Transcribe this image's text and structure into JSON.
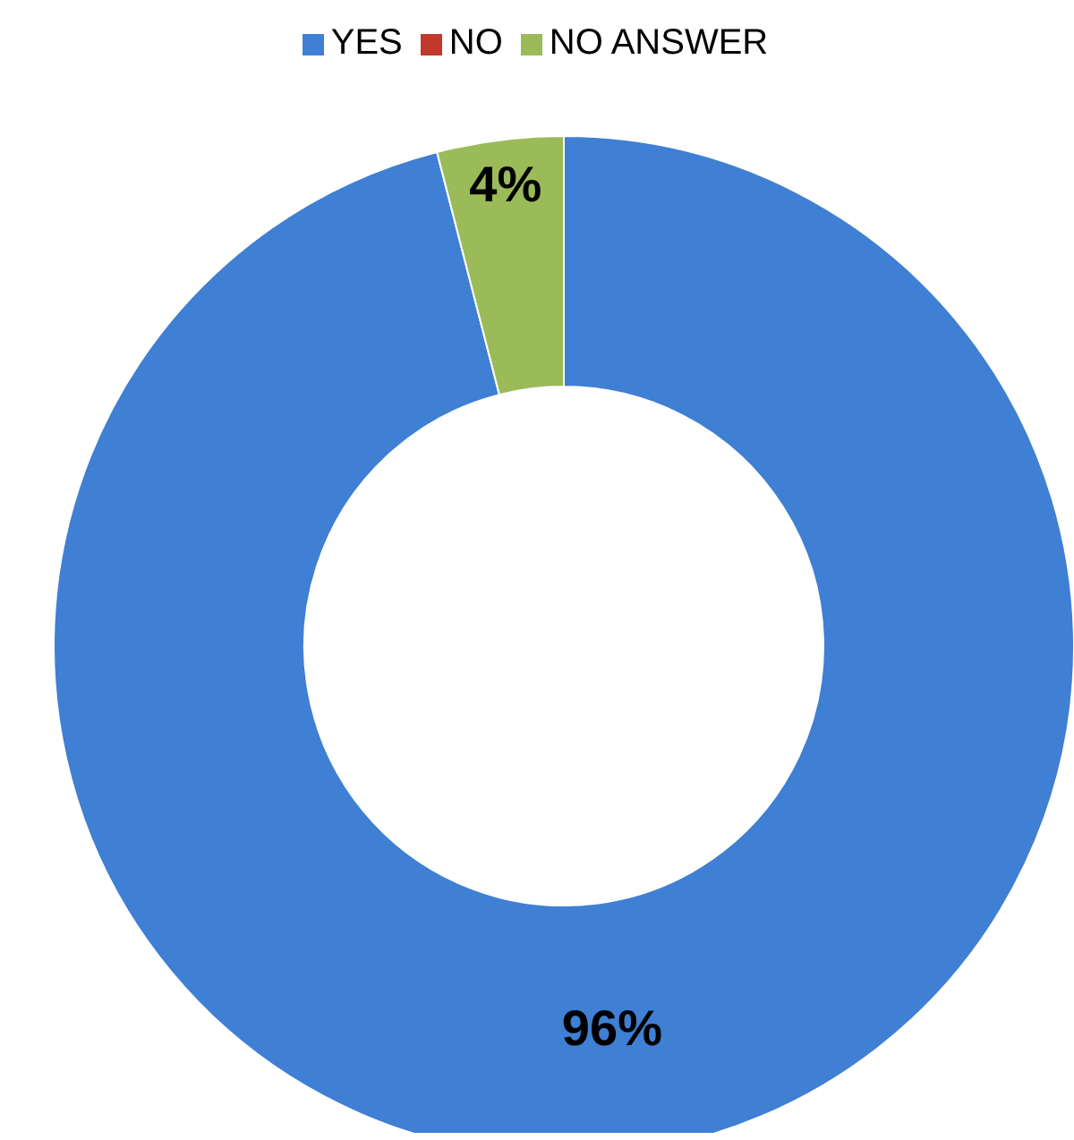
{
  "chart_data": {
    "type": "donut",
    "categories": [
      "YES",
      "NO",
      "NO ANSWER"
    ],
    "values": [
      96,
      0,
      4
    ],
    "colors": [
      "#3f7fd4",
      "#c0392b",
      "#9bbb59"
    ],
    "value_labels": [
      "96%",
      null,
      "4%"
    ],
    "legend": "top"
  }
}
